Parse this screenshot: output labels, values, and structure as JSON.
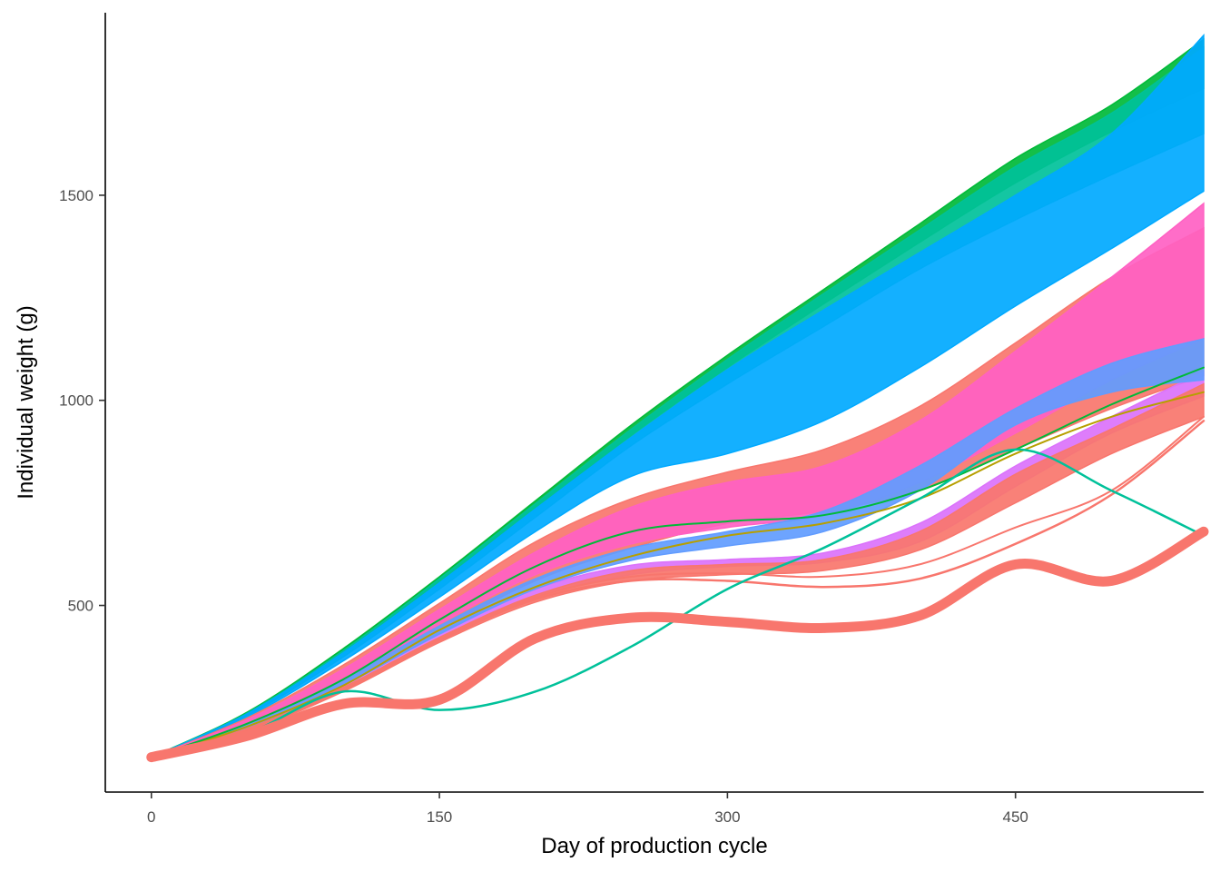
{
  "chart_data": {
    "type": "line",
    "xlabel": "Day of production cycle",
    "ylabel": "Individual weight (g)",
    "xlim": [
      -24,
      548
    ],
    "ylim": [
      45,
      1945
    ],
    "x_ticks": [
      0,
      150,
      300,
      450
    ],
    "y_ticks": [
      500,
      1000,
      1500
    ],
    "grid": false,
    "legend": "none",
    "colors": {
      "red": "#F8766D",
      "green": "#00BA38",
      "teal": "#00C19A",
      "cyan": "#00A9FF",
      "blue": "#619CFF",
      "magenta": "#FF61C3",
      "violet": "#DB72FB",
      "olive": "#B79F00"
    },
    "x": [
      0,
      50,
      100,
      150,
      200,
      250,
      300,
      350,
      400,
      450,
      500,
      548
    ],
    "bands": [
      {
        "color": "#00BA38",
        "lower": [
          130,
          235,
          385,
          555,
          735,
          915,
          1080,
          1235,
          1385,
          1530,
          1655,
          1760
        ],
        "upper": [
          130,
          240,
          395,
          570,
          755,
          940,
          1110,
          1270,
          1430,
          1590,
          1720,
          1880
        ]
      },
      {
        "color": "#00C19A",
        "lower": [
          130,
          232,
          375,
          540,
          715,
          890,
          1040,
          1180,
          1320,
          1440,
          1550,
          1650
        ],
        "upper": [
          130,
          238,
          390,
          565,
          748,
          930,
          1100,
          1260,
          1415,
          1570,
          1700,
          1860
        ]
      },
      {
        "color": "#00A9FF",
        "lower": [
          130,
          228,
          365,
          520,
          680,
          815,
          870,
          950,
          1080,
          1230,
          1370,
          1510
        ],
        "upper": [
          130,
          236,
          385,
          555,
          735,
          910,
          1075,
          1220,
          1360,
          1500,
          1650,
          1890
        ]
      },
      {
        "color": "#F8766D",
        "lower": [
          130,
          200,
          310,
          440,
          560,
          640,
          700,
          730,
          780,
          880,
          980,
          1060
        ],
        "upper": [
          130,
          226,
          355,
          505,
          655,
          760,
          825,
          880,
          985,
          1140,
          1300,
          1420
        ]
      },
      {
        "color": "#FF61C3",
        "lower": [
          130,
          205,
          320,
          455,
          575,
          650,
          690,
          720,
          800,
          920,
          1050,
          1150
        ],
        "upper": [
          130,
          222,
          345,
          490,
          630,
          740,
          800,
          840,
          950,
          1120,
          1300,
          1480
        ]
      },
      {
        "color": "#DB72FB",
        "lower": [
          130,
          198,
          300,
          420,
          520,
          575,
          595,
          605,
          655,
          790,
          920,
          1010
        ],
        "upper": [
          130,
          205,
          312,
          435,
          540,
          598,
          612,
          628,
          700,
          840,
          960,
          1070
        ]
      },
      {
        "color": "#619CFF",
        "lower": [
          130,
          200,
          305,
          430,
          540,
          610,
          645,
          680,
          780,
          940,
          1020,
          1050
        ],
        "upper": [
          130,
          210,
          320,
          450,
          565,
          640,
          680,
          730,
          840,
          980,
          1090,
          1150
        ]
      },
      {
        "color": "#F8766D",
        "lower": [
          130,
          193,
          290,
          410,
          508,
          560,
          575,
          585,
          635,
          750,
          870,
          960
        ],
        "upper": [
          130,
          200,
          300,
          422,
          525,
          585,
          600,
          612,
          680,
          820,
          930,
          1040
        ]
      }
    ],
    "series": [
      {
        "color": "#B79F00",
        "width": 2,
        "y": [
          130,
          205,
          305,
          440,
          545,
          620,
          670,
          700,
          760,
          870,
          960,
          1020
        ]
      },
      {
        "color": "#00BA38",
        "width": 2,
        "y": [
          130,
          212,
          320,
          465,
          595,
          680,
          705,
          720,
          780,
          880,
          990,
          1080
        ]
      },
      {
        "color": "#F8766D",
        "width": 2.5,
        "y": [
          130,
          195,
          295,
          415,
          515,
          560,
          560,
          545,
          565,
          650,
          770,
          950
        ]
      },
      {
        "color": "#F8766D",
        "width": 2,
        "y": [
          130,
          198,
          300,
          418,
          520,
          570,
          578,
          570,
          600,
          690,
          780,
          960
        ]
      },
      {
        "color": "#00C19A",
        "width": 2.5,
        "y": [
          130,
          188,
          290,
          245,
          290,
          400,
          540,
          640,
          760,
          880,
          780,
          670
        ]
      },
      {
        "color": "#F8766D",
        "width": 11,
        "y": [
          130,
          182,
          260,
          270,
          420,
          470,
          460,
          445,
          475,
          600,
          560,
          680
        ]
      }
    ]
  }
}
